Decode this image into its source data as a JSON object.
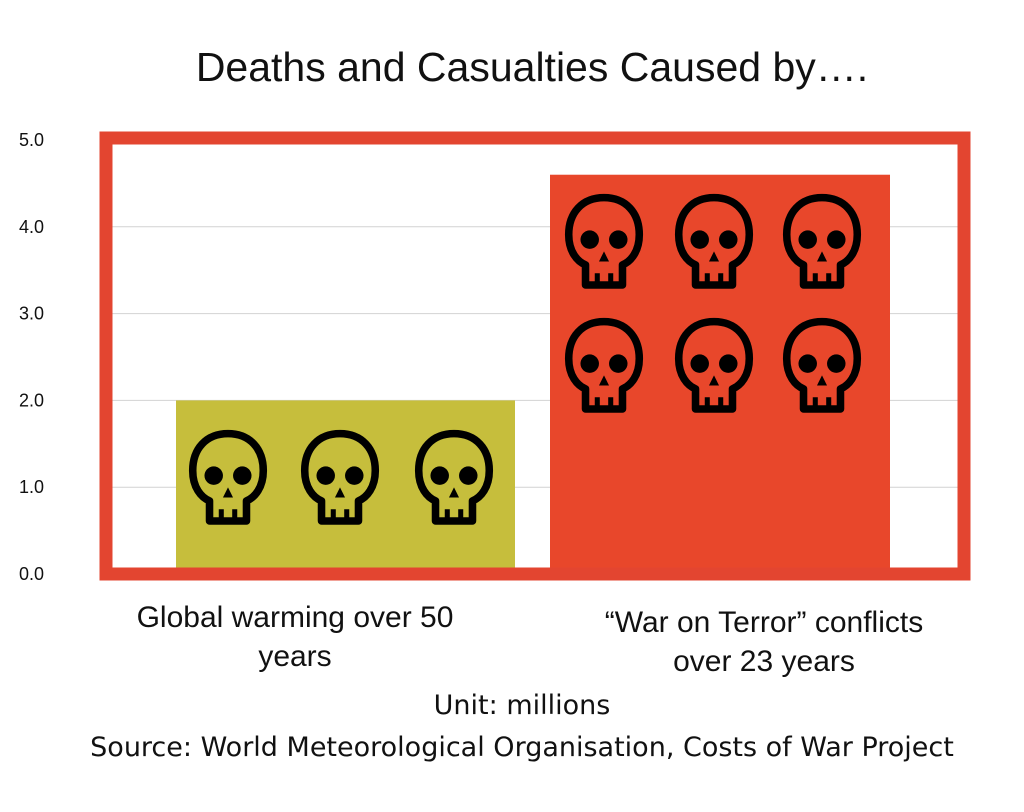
{
  "chart_data": {
    "type": "bar",
    "title": "Deaths and Casualties Caused by….",
    "categories": [
      "Global warming over 50 years",
      "“War on Terror” conflicts over 23 years"
    ],
    "series": [
      {
        "values": [
          2.0,
          4.6
        ],
        "colors": [
          "#c6be3c",
          "#e8472b"
        ]
      }
    ],
    "skull_counts": [
      3,
      6
    ],
    "ylim": [
      0,
      5
    ],
    "yticks": [
      "0.0",
      "1.0",
      "2.0",
      "3.0",
      "4.0",
      "5.0"
    ],
    "grid": true,
    "frame_color": "#e34530",
    "unit_note": "Unit: millions",
    "source": "Source: World Meteorological Organisation, Costs of War Project"
  }
}
